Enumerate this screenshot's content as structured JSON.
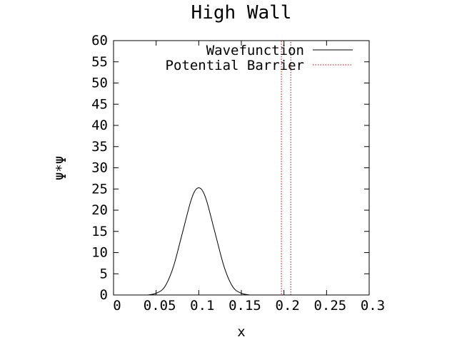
{
  "chart_data": {
    "type": "line",
    "title": "High Wall",
    "xlabel": "x",
    "ylabel": "Ψ*Ψ",
    "xlim": [
      0,
      0.3
    ],
    "ylim": [
      0,
      60
    ],
    "x_ticks": [
      "0",
      "0.05",
      "0.1",
      "0.15",
      "0.2",
      "0.25",
      "0.3"
    ],
    "y_ticks": [
      "0",
      "5",
      "10",
      "15",
      "20",
      "25",
      "30",
      "35",
      "40",
      "45",
      "50",
      "55",
      "60"
    ],
    "grid": false,
    "legend_position": "top-right",
    "series": [
      {
        "name": "Wavefunction",
        "color": "#000000",
        "style": "solid",
        "x": [
          0.04,
          0.05,
          0.06,
          0.07,
          0.08,
          0.09,
          0.095,
          0.1,
          0.105,
          0.11,
          0.12,
          0.13,
          0.14,
          0.15,
          0.16
        ],
        "y": [
          0.0,
          0.4,
          1.9,
          6.5,
          14.0,
          21.7,
          24.4,
          25.3,
          24.4,
          21.7,
          14.0,
          6.5,
          1.9,
          0.4,
          0.0
        ]
      },
      {
        "name": "Potential Barrier",
        "color": "#cc0000",
        "style": "dotted",
        "x": [
          0.195,
          0.197,
          0.197,
          0.208,
          0.208,
          0.21
        ],
        "y": [
          0,
          0,
          60,
          60,
          0,
          0
        ]
      }
    ]
  }
}
